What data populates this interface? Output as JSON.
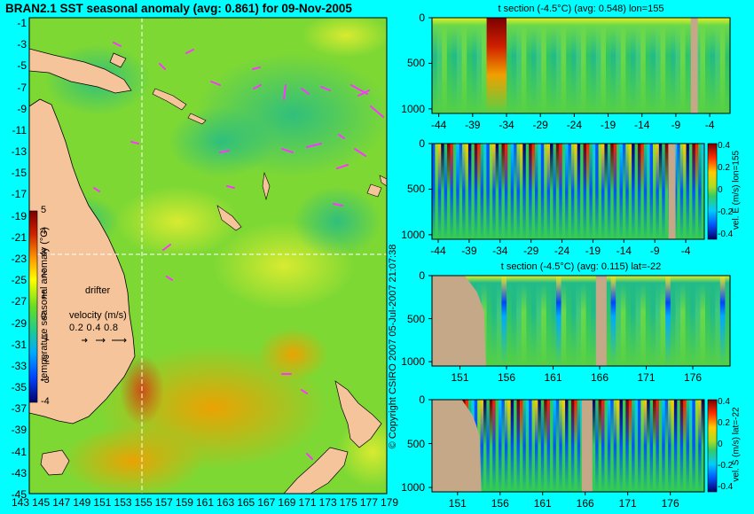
{
  "title": "BRAN2.1 SST seasonal anomaly (avg: 0.861) for 09-Nov-2005",
  "copyright": "© Copyright CSIRO 2007  05-Jul-2007 21:07:38",
  "colors": {
    "background": "#00ffff",
    "land": "#f5c49a",
    "section_land": "#c4a888",
    "drifter": "#ff33ff",
    "crosshair": "#ffffff"
  },
  "map": {
    "colorbar_label": "temperature seasonal anomaly (°C)",
    "colorbar_ticks": [
      "5",
      "4",
      "3",
      "2",
      "1",
      "0",
      "-1",
      "-2",
      "-3",
      "-4"
    ],
    "drifter_label": "drifter",
    "velocity_label": "velocity (m/s)",
    "velocity_scale": "0.2 0.4 0.8",
    "y_ticks": [
      "-1",
      "-3",
      "-5",
      "-7",
      "-9",
      "-11",
      "-13",
      "-15",
      "-17",
      "-19",
      "-21",
      "-23",
      "-25",
      "-27",
      "-29",
      "-31",
      "-33",
      "-35",
      "-37",
      "-39",
      "-41",
      "-43",
      "-45"
    ],
    "x_ticks": [
      "143",
      "145",
      "147",
      "149",
      "151",
      "153",
      "155",
      "157",
      "159",
      "161",
      "163",
      "165",
      "167",
      "169",
      "171",
      "173",
      "175",
      "177",
      "179"
    ]
  },
  "chart_data": [
    {
      "type": "heatmap",
      "title": "t section (-4.5°C) (avg: 0.548) lon=155",
      "x_ticks": [
        "-44",
        "-39",
        "-34",
        "-29",
        "-24",
        "-19",
        "-14",
        "-9",
        "-4"
      ],
      "y_ticks": [
        "0",
        "500",
        "1000"
      ],
      "xlim": [
        -45,
        -1
      ],
      "ylim": [
        1050,
        0
      ],
      "colorbar_label": "",
      "colorbar_ticks": []
    },
    {
      "type": "heatmap",
      "title": "",
      "x_ticks": [
        "-44",
        "-39",
        "-34",
        "-29",
        "-24",
        "-19",
        "-14",
        "-9",
        "-4"
      ],
      "y_ticks": [
        "0",
        "500",
        "1000"
      ],
      "xlim": [
        -45,
        -1
      ],
      "ylim": [
        1050,
        0
      ],
      "colorbar_label": "vel. E (m/s) lon=155",
      "colorbar_ticks": [
        "0.4",
        "0.2",
        "0",
        "-0.2",
        "-0.4"
      ]
    },
    {
      "type": "heatmap",
      "title": "t section (-4.5°C) (avg: 0.115) lat=-22",
      "x_ticks": [
        "151",
        "156",
        "161",
        "166",
        "171",
        "176"
      ],
      "y_ticks": [
        "0",
        "500",
        "1000"
      ],
      "xlim": [
        148,
        180
      ],
      "ylim": [
        1050,
        0
      ],
      "colorbar_label": "",
      "colorbar_ticks": []
    },
    {
      "type": "heatmap",
      "title": "",
      "x_ticks": [
        "151",
        "156",
        "161",
        "166",
        "171",
        "176"
      ],
      "y_ticks": [
        "0",
        "500",
        "1000"
      ],
      "xlim": [
        148,
        180
      ],
      "ylim": [
        1050,
        0
      ],
      "colorbar_label": "vel. S (m/s) lat=-22",
      "colorbar_ticks": [
        "0.4",
        "0.2",
        "0",
        "-0.2",
        "-0.4"
      ]
    }
  ]
}
